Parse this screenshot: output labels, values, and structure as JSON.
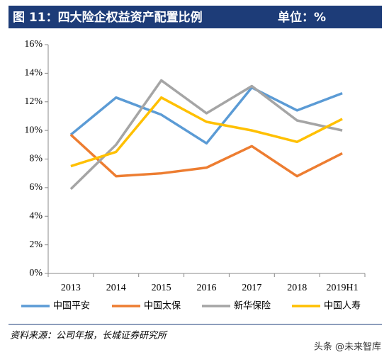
{
  "chart_data": {
    "type": "line",
    "title": "图 11：四大险企权益资产配置比例",
    "unit": "单位：%",
    "categories": [
      "2013",
      "2014",
      "2015",
      "2016",
      "2017",
      "2018",
      "2019H1"
    ],
    "series": [
      {
        "name": "中国平安",
        "color": "#5b9bd5",
        "values": [
          9.7,
          12.3,
          11.1,
          9.1,
          13.0,
          11.4,
          12.6
        ]
      },
      {
        "name": "中国太保",
        "color": "#ed7d31",
        "values": [
          9.7,
          6.8,
          7.0,
          7.4,
          8.9,
          6.8,
          8.4
        ]
      },
      {
        "name": "新华保险",
        "color": "#a5a5a5",
        "values": [
          5.9,
          9.0,
          13.5,
          11.2,
          13.1,
          10.7,
          10.0
        ]
      },
      {
        "name": "中国人寿",
        "color": "#ffc000",
        "values": [
          7.5,
          8.5,
          12.3,
          10.6,
          10.0,
          9.2,
          10.8
        ]
      }
    ],
    "ylim": [
      0,
      16
    ],
    "yticks": [
      {
        "value": 0,
        "label": "0%"
      },
      {
        "value": 2,
        "label": "2%"
      },
      {
        "value": 4,
        "label": "4%"
      },
      {
        "value": 6,
        "label": "6%"
      },
      {
        "value": 8,
        "label": "8%"
      },
      {
        "value": 10,
        "label": "10%"
      },
      {
        "value": 12,
        "label": "12%"
      },
      {
        "value": 14,
        "label": "14%"
      },
      {
        "value": 16,
        "label": "16%"
      }
    ],
    "grid": false,
    "legend": "bottom",
    "source": "资料来源：公司年报，长城证券研究所",
    "watermark": "头条 @未来智库"
  }
}
